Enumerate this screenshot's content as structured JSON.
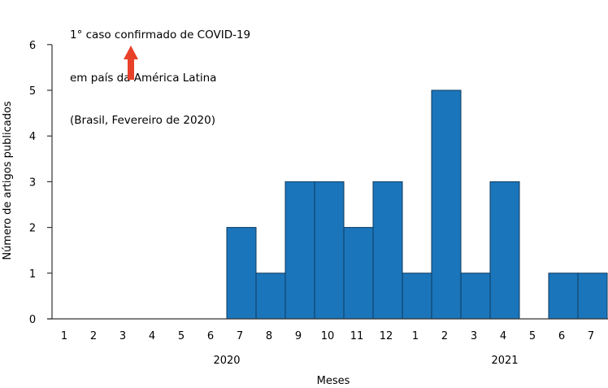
{
  "chart_data": {
    "type": "bar",
    "title": "",
    "xlabel": "Meses",
    "ylabel": "Número de artigos publicados",
    "ylim": [
      0,
      6
    ],
    "yticks": [
      0,
      1,
      2,
      3,
      4,
      5,
      6
    ],
    "grid": false,
    "legend": null,
    "categories": [
      "1",
      "2",
      "3",
      "4",
      "5",
      "6",
      "7",
      "8",
      "9",
      "10",
      "11",
      "12",
      "1",
      "2",
      "3",
      "4",
      "5",
      "6",
      "7"
    ],
    "year_groups": [
      {
        "label": "2020",
        "months": [
          "1",
          "2",
          "3",
          "4",
          "5",
          "6",
          "7",
          "8",
          "9",
          "10",
          "11",
          "12"
        ]
      },
      {
        "label": "2021",
        "months": [
          "1",
          "2",
          "3",
          "4",
          "5",
          "6",
          "7"
        ]
      }
    ],
    "values": [
      0,
      0,
      0,
      0,
      0,
      0,
      2,
      1,
      3,
      3,
      2,
      3,
      1,
      5,
      1,
      3,
      0,
      1,
      1
    ],
    "bar_color": "#1b75bb",
    "annotation": {
      "lines": [
        "1° caso confirmado de COVID-19",
        "em país da América Latina",
        "(Brasil, Fevereiro de 2020)"
      ],
      "points_to": "2020 month 2-3",
      "arrow_color": "#e8412a"
    }
  }
}
